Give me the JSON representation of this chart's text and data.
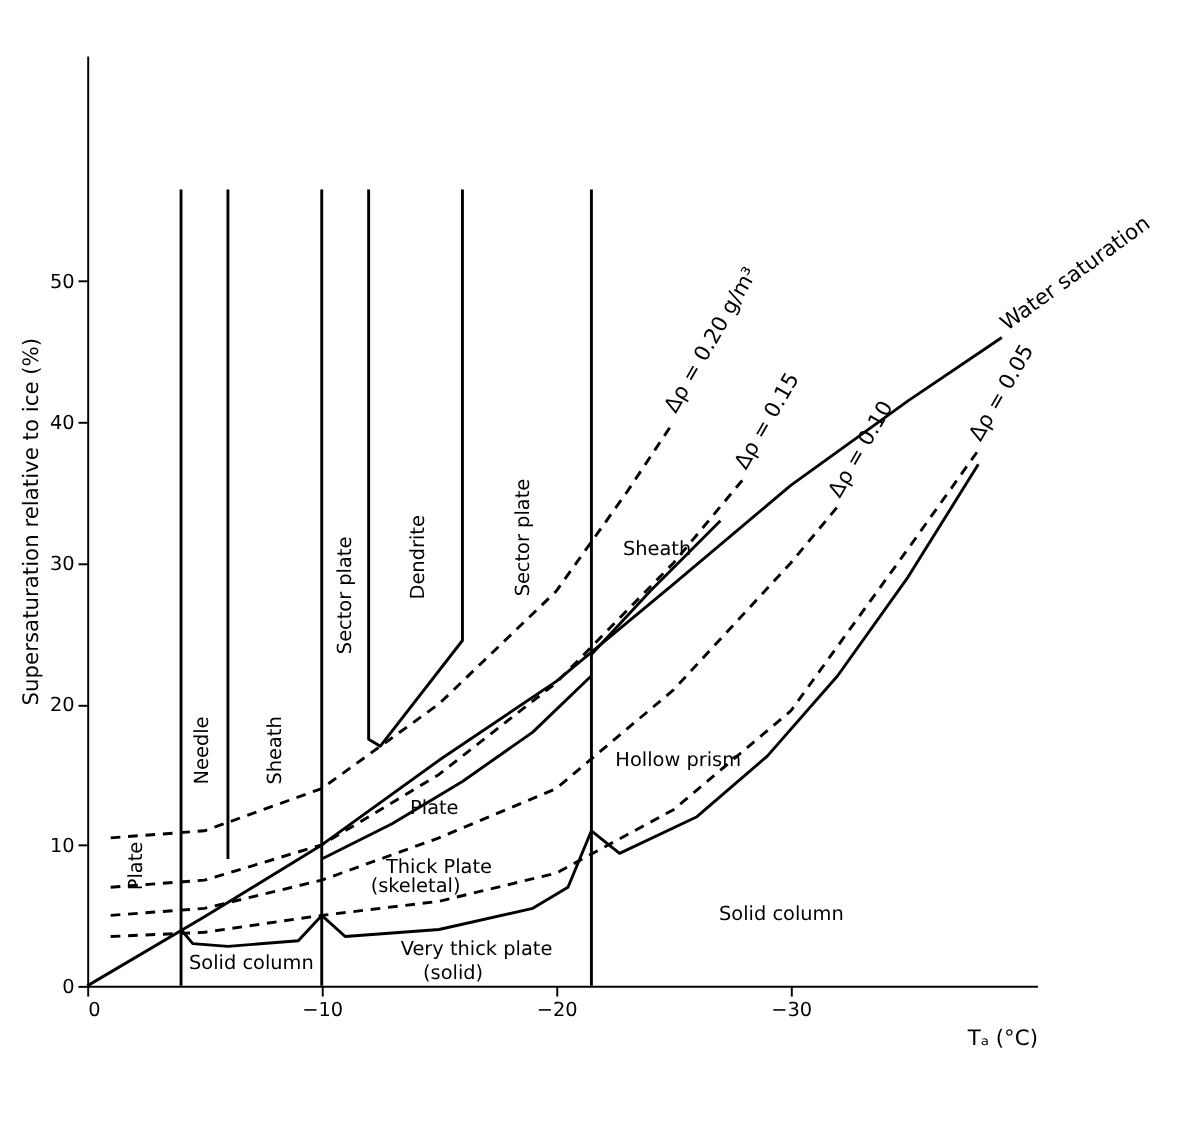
{
  "chart_data": {
    "type": "line",
    "xlabel": "Tₐ (°C)",
    "ylabel": "Supersaturation relative to ice (%)",
    "xlim": [
      0,
      -40.5
    ],
    "ylim": [
      0,
      66
    ],
    "xticks": [
      0,
      -10,
      -20,
      -30
    ],
    "yticks": [
      0,
      10,
      20,
      30,
      40,
      50
    ],
    "grid": false,
    "marker": "none",
    "series": [
      {
        "name": "Water saturation",
        "color": "#000000",
        "line_style": "solid",
        "x": [
          0,
          -5,
          -10,
          -15,
          -20,
          -25,
          -30,
          -35,
          -39
        ],
        "values": [
          0,
          4.9,
          10,
          16,
          21.6,
          28.5,
          35.5,
          41.5,
          46
        ]
      },
      {
        "name": "Δρ = 0.20 g/m³",
        "color": "#000000",
        "line_style": "dashed",
        "x": [
          -1,
          -5,
          -10,
          -15,
          -20,
          -23,
          -25
        ],
        "values": [
          10.5,
          11,
          14,
          20,
          28,
          35,
          40
        ]
      },
      {
        "name": "Δρ = 0.15",
        "color": "#000000",
        "line_style": "dashed",
        "x": [
          -1,
          -5,
          -10,
          -15,
          -20,
          -25,
          -28
        ],
        "values": [
          7,
          7.5,
          10,
          15,
          21.5,
          30,
          36
        ]
      },
      {
        "name": "Δρ = 0.10",
        "color": "#000000",
        "line_style": "dashed",
        "x": [
          -1,
          -5,
          -10,
          -15,
          -20,
          -25,
          -30,
          -32
        ],
        "values": [
          5,
          5.5,
          7.5,
          10.5,
          14,
          21,
          30,
          34
        ]
      },
      {
        "name": "Δρ = 0.05",
        "color": "#000000",
        "line_style": "dashed",
        "x": [
          -1,
          -5,
          -10,
          -15,
          -20,
          -25,
          -30,
          -35,
          -38
        ],
        "values": [
          3.5,
          3.8,
          5,
          6,
          8,
          12.5,
          19.5,
          31,
          38
        ]
      },
      {
        "color": "#000000",
        "line_style": "solid",
        "x": [
          -4,
          -4
        ],
        "values": [
          0,
          56.5
        ]
      },
      {
        "color": "#000000",
        "line_style": "solid",
        "x": [
          -6,
          -6
        ],
        "values": [
          9,
          56.5
        ]
      },
      {
        "color": "#000000",
        "line_style": "solid",
        "x": [
          -10,
          -10,
          -11,
          -15,
          -19,
          -20.5,
          -21.5,
          -22.7,
          -26,
          -29,
          -32,
          -35,
          -38
        ],
        "values": [
          56.5,
          5,
          3.5,
          4,
          5.5,
          7,
          11,
          9.4,
          12,
          16.3,
          22,
          29,
          37
        ]
      },
      {
        "color": "#000000",
        "line_style": "solid",
        "x": [
          -12,
          -12,
          -12.5,
          -16,
          -16
        ],
        "values": [
          56.5,
          17.5,
          17,
          24.5,
          56.5
        ]
      },
      {
        "color": "#000000",
        "line_style": "solid",
        "x": [
          -21.5,
          -21.5
        ],
        "values": [
          0,
          56.5
        ]
      },
      {
        "color": "#000000",
        "line_style": "solid",
        "x": [
          -4,
          -4.5,
          -6,
          -9,
          -10,
          -10
        ],
        "values": [
          4,
          3,
          2.8,
          3.2,
          5,
          0
        ]
      },
      {
        "color": "#000000",
        "line_style": "solid",
        "x": [
          -10,
          -13,
          -16,
          -19,
          -21.5
        ],
        "values": [
          9,
          11.5,
          14.5,
          18,
          22
        ]
      },
      {
        "color": "#000000",
        "line_style": "solid",
        "x": [
          -21.5,
          -24,
          -27
        ],
        "values": [
          23.5,
          28,
          33
        ]
      }
    ],
    "annotations": [
      "Plate",
      "Needle",
      "Sheath",
      "Sector plate",
      "Dendrite",
      "Sector plate",
      "Sheath",
      "Plate",
      "Thick Plate",
      "(skeletal)",
      "Very thick plate",
      "(solid)",
      "Solid column",
      "Hollow prism",
      "Solid column"
    ]
  }
}
